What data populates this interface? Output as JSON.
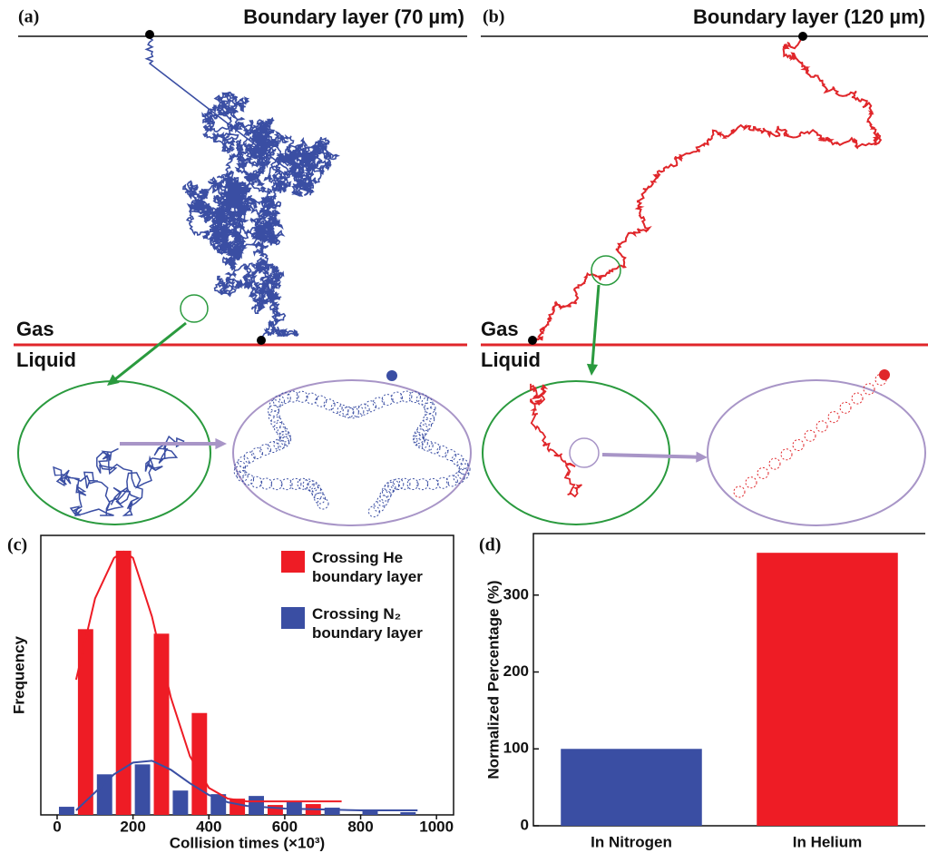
{
  "panels": [
    {
      "label": "(a)",
      "boundary_title": "Boundary layer (70 µm)",
      "gas": "Gas",
      "liquid": "Liquid"
    },
    {
      "label": "(b)",
      "boundary_title": "Boundary layer (120 µm)",
      "gas": "Gas",
      "liquid": "Liquid"
    }
  ],
  "chart_data": [
    {
      "type": "histogram",
      "label": "(c)",
      "x_label": "Collision times (×10³)",
      "y_label": "Frequency",
      "bins": [
        0,
        100,
        200,
        300,
        400,
        500,
        600,
        700,
        800,
        900,
        1000
      ],
      "xlim": [
        -43,
        1045
      ],
      "xticks": [
        0,
        200,
        400,
        600,
        800,
        1000
      ],
      "ylim": [
        0,
        310
      ],
      "series": [
        {
          "name": "Crossing He boundary layer",
          "color": "#ee1c25",
          "values": [
            206,
            293,
            201,
            113,
            18,
            11,
            12,
            0,
            0,
            0
          ],
          "fit": {
            "x": [
              50,
              100,
              150,
              175,
              200,
              250,
              300,
              350,
              400,
              450,
              500,
              600,
              750
            ],
            "values": [
              150,
              240,
              285,
              292,
              285,
              220,
              130,
              65,
              30,
              18,
              15,
              15,
              15
            ]
          }
        },
        {
          "name": "Crossing N₂ boundary layer",
          "color": "#3a4ea3",
          "values": [
            9,
            45,
            56,
            27,
            23,
            21,
            15,
            8,
            5,
            3
          ],
          "fit": {
            "x": [
              50,
              100,
              150,
              200,
              250,
              300,
              350,
              400,
              450,
              500,
              600,
              700,
              800,
              950
            ],
            "values": [
              5,
              25,
              45,
              58,
              60,
              50,
              35,
              22,
              14,
              10,
              7,
              6,
              5,
              5
            ]
          }
        }
      ]
    },
    {
      "type": "bar",
      "label": "(d)",
      "y_label": "Normalized Percentage (%)",
      "categories": [
        "In Nitrogen",
        "In Helium"
      ],
      "values": [
        100,
        355
      ],
      "colors": [
        "#3a4ea3",
        "#ee1c25"
      ],
      "ylim": [
        0,
        380
      ],
      "yticks": [
        0,
        100,
        200,
        300
      ]
    }
  ]
}
